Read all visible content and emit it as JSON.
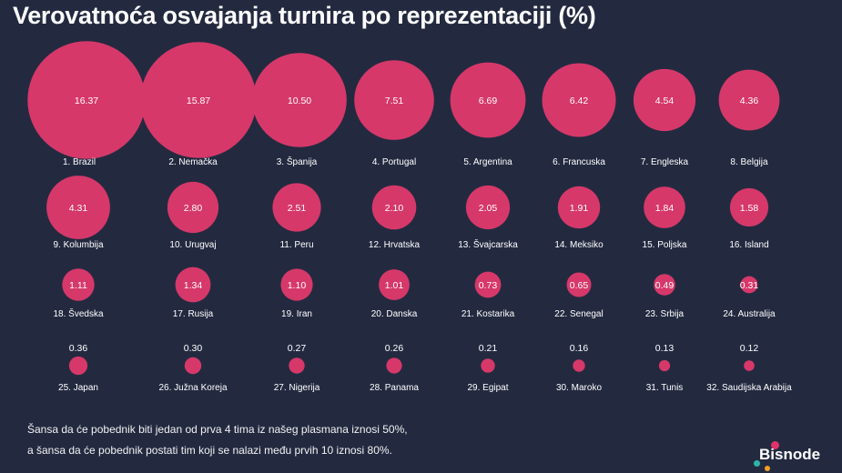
{
  "chart_data": {
    "type": "bubble",
    "title": "Verovatnoća osvajanja turnira po reprezentaciji (%)",
    "bubble_color": "#d6386a",
    "background": "#232a40",
    "categories": [
      "1. Brazil",
      "2. Nemačka",
      "3. Španija",
      "4. Portugal",
      "5. Argentina",
      "6. Francuska",
      "7. Engleska",
      "8. Belgija",
      "9. Kolumbija",
      "10. Urugvaj",
      "11. Peru",
      "12. Hrvatska",
      "13. Švajcarska",
      "14. Meksiko",
      "15. Poljska",
      "16. Island",
      "18. Švedska",
      "17. Rusija",
      "19. Iran",
      "20. Danska",
      "21. Kostarika",
      "22. Senegal",
      "23. Srbija",
      "24. Australija",
      "25. Japan",
      "26. Južna Koreja",
      "27. Nigerija",
      "28. Panama",
      "29. Egipat",
      "30. Maroko",
      "31. Tunis",
      "32. Saudijska Arabija"
    ],
    "values": [
      "16.37",
      "15.87",
      "10.50",
      "7.51",
      "6.69",
      "6.42",
      "4.54",
      "4.36",
      "4.31",
      "2.80",
      "2.51",
      "2.10",
      "2.05",
      "1.91",
      "1.84",
      "1.58",
      "1.11",
      "1.34",
      "1.10",
      "1.01",
      "0.73",
      "0.65",
      "0.49",
      "0.31",
      "0.36",
      "0.30",
      "0.27",
      "0.26",
      "0.21",
      "0.16",
      "0.13",
      "0.12"
    ]
  },
  "notes": [
    "Šansa da će pobednik biti jedan od prva 4 tima iz našeg plasmana iznosi 50%,",
    "a šansa da će pobednik postati tim koji se nalazi među prvih 10 iznosi 80%."
  ],
  "logo": {
    "text": "Bisnode",
    "colors": [
      "#e0336b",
      "#2bb5a8",
      "#f2a01f"
    ]
  }
}
